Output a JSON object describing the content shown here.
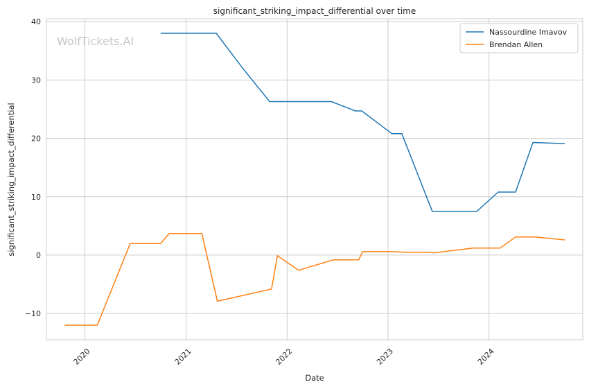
{
  "chart_data": {
    "type": "line",
    "title": "significant_striking_impact_differential over time",
    "xlabel": "Date",
    "ylabel": "significant_striking_impact_differential",
    "watermark": "WolfTickets.AI",
    "x_ticks": [
      "2020",
      "2021",
      "2022",
      "2023",
      "2024"
    ],
    "y_ticks": [
      -10,
      0,
      10,
      20,
      30,
      40
    ],
    "ylim": [
      -14.5,
      40.5
    ],
    "xlim": [
      "2019-08-15",
      "2024-12-05"
    ],
    "grid": true,
    "legend_position": "top-right",
    "series": [
      {
        "name": "Nassourdine Imavov",
        "color": "#1f77b4",
        "points": [
          {
            "x": "2020-10-01",
            "y": 38
          },
          {
            "x": "2021-04-20",
            "y": 38
          },
          {
            "x": "2021-07-25",
            "y": 32
          },
          {
            "x": "2021-10-30",
            "y": 26.3
          },
          {
            "x": "2022-06-10",
            "y": 26.3
          },
          {
            "x": "2022-09-05",
            "y": 24.7
          },
          {
            "x": "2022-09-28",
            "y": 24.7
          },
          {
            "x": "2023-01-15",
            "y": 20.8
          },
          {
            "x": "2023-02-20",
            "y": 20.8
          },
          {
            "x": "2023-06-10",
            "y": 7.5
          },
          {
            "x": "2023-11-18",
            "y": 7.5
          },
          {
            "x": "2024-02-03",
            "y": 10.8
          },
          {
            "x": "2024-04-06",
            "y": 10.8
          },
          {
            "x": "2024-06-08",
            "y": 19.3
          },
          {
            "x": "2024-10-01",
            "y": 19.1
          }
        ]
      },
      {
        "name": "Brendan Allen",
        "color": "#ff7f0e",
        "points": [
          {
            "x": "2019-10-20",
            "y": -12
          },
          {
            "x": "2020-02-15",
            "y": -12
          },
          {
            "x": "2020-06-13",
            "y": 2
          },
          {
            "x": "2020-10-01",
            "y": 2
          },
          {
            "x": "2020-11-01",
            "y": 3.7
          },
          {
            "x": "2021-02-27",
            "y": 3.7
          },
          {
            "x": "2021-04-24",
            "y": -7.9
          },
          {
            "x": "2021-11-06",
            "y": -5.8
          },
          {
            "x": "2021-11-27",
            "y": -0.1
          },
          {
            "x": "2022-02-12",
            "y": -2.6
          },
          {
            "x": "2022-06-18",
            "y": -0.8
          },
          {
            "x": "2022-09-17",
            "y": -0.8
          },
          {
            "x": "2022-10-01",
            "y": 0.6
          },
          {
            "x": "2023-01-14",
            "y": 0.6
          },
          {
            "x": "2023-03-04",
            "y": 0.5
          },
          {
            "x": "2023-06-03",
            "y": 0.5
          },
          {
            "x": "2023-06-17",
            "y": 0.4
          },
          {
            "x": "2023-11-04",
            "y": 1.2
          },
          {
            "x": "2024-02-10",
            "y": 1.2
          },
          {
            "x": "2024-04-06",
            "y": 3.1
          },
          {
            "x": "2024-06-15",
            "y": 3.1
          },
          {
            "x": "2024-10-01",
            "y": 2.6
          }
        ]
      }
    ]
  }
}
